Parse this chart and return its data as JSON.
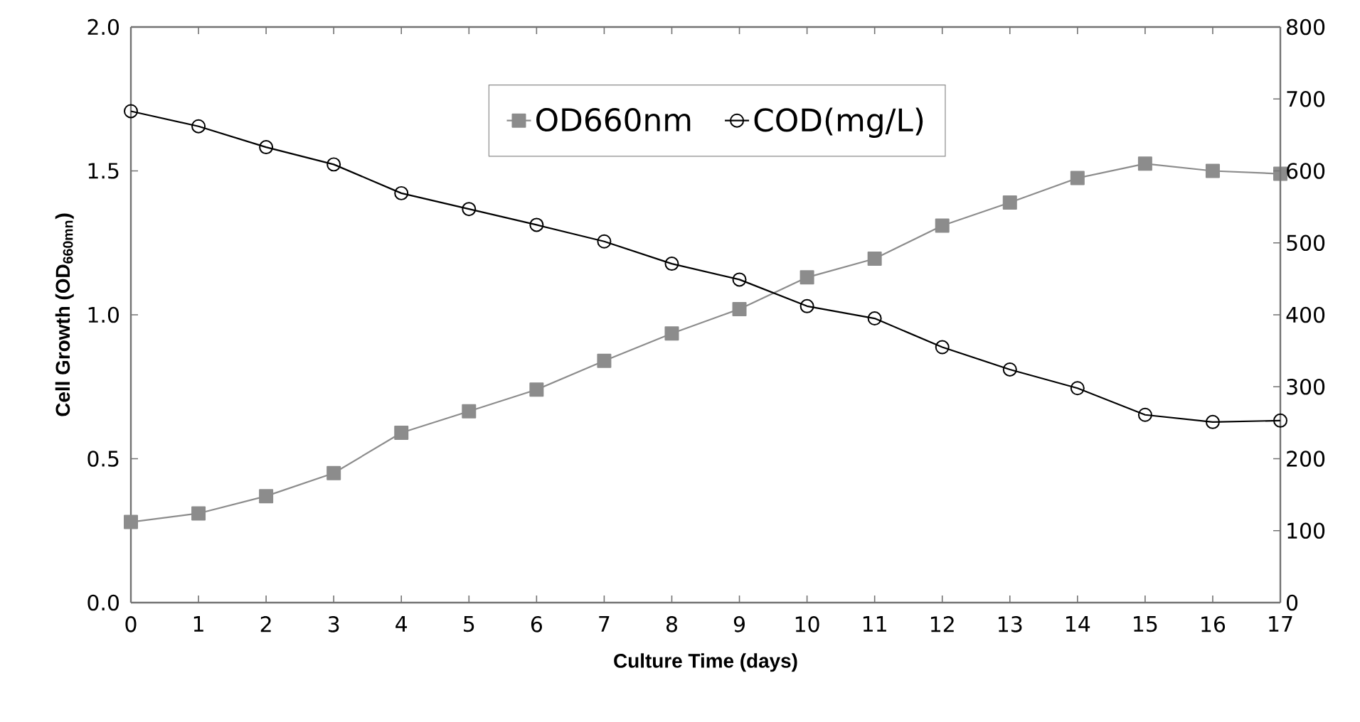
{
  "chart_data": {
    "type": "line",
    "xlabel": "Culture Time (days)",
    "ylabel": "Cell Growth (OD$_{660mn}$)",
    "x": [
      0,
      1,
      2,
      3,
      4,
      5,
      6,
      7,
      8,
      9,
      10,
      11,
      12,
      13,
      14,
      15,
      16,
      17
    ],
    "xlim": [
      0,
      17
    ],
    "xticks": [
      0,
      1,
      2,
      3,
      4,
      5,
      6,
      7,
      8,
      9,
      10,
      11,
      12,
      13,
      14,
      15,
      16,
      17
    ],
    "ylim": [
      0,
      2
    ],
    "yticks": [
      {
        "value": 0,
        "label": "0.0"
      },
      {
        "value": 0.5,
        "label": "0.5"
      },
      {
        "value": 1,
        "label": "1.0"
      },
      {
        "value": 1.5,
        "label": "1.5"
      },
      {
        "value": 2,
        "label": "2.0"
      }
    ],
    "y2lim": [
      0,
      800
    ],
    "y2ticks": [
      0,
      100,
      200,
      300,
      400,
      500,
      600,
      700,
      800
    ],
    "legend": "top",
    "grid": false,
    "series": [
      {
        "name": "OD660nm",
        "color": "#8c8c8c",
        "marker": "square",
        "values": [
          0.28,
          0.31,
          0.37,
          0.45,
          0.59,
          0.665,
          0.74,
          0.84,
          0.935,
          1.02,
          1.13,
          1.195,
          1.31,
          1.39,
          1.475,
          1.525,
          1.5,
          1.49
        ]
      },
      {
        "name": "COD(mg/L)",
        "color": "#000000",
        "marker": "circle",
        "axis": "y2",
        "values": [
          683,
          662,
          633,
          609,
          569,
          547,
          525,
          502,
          471,
          449,
          412,
          395,
          355,
          324,
          298,
          261,
          251,
          253
        ]
      }
    ]
  }
}
